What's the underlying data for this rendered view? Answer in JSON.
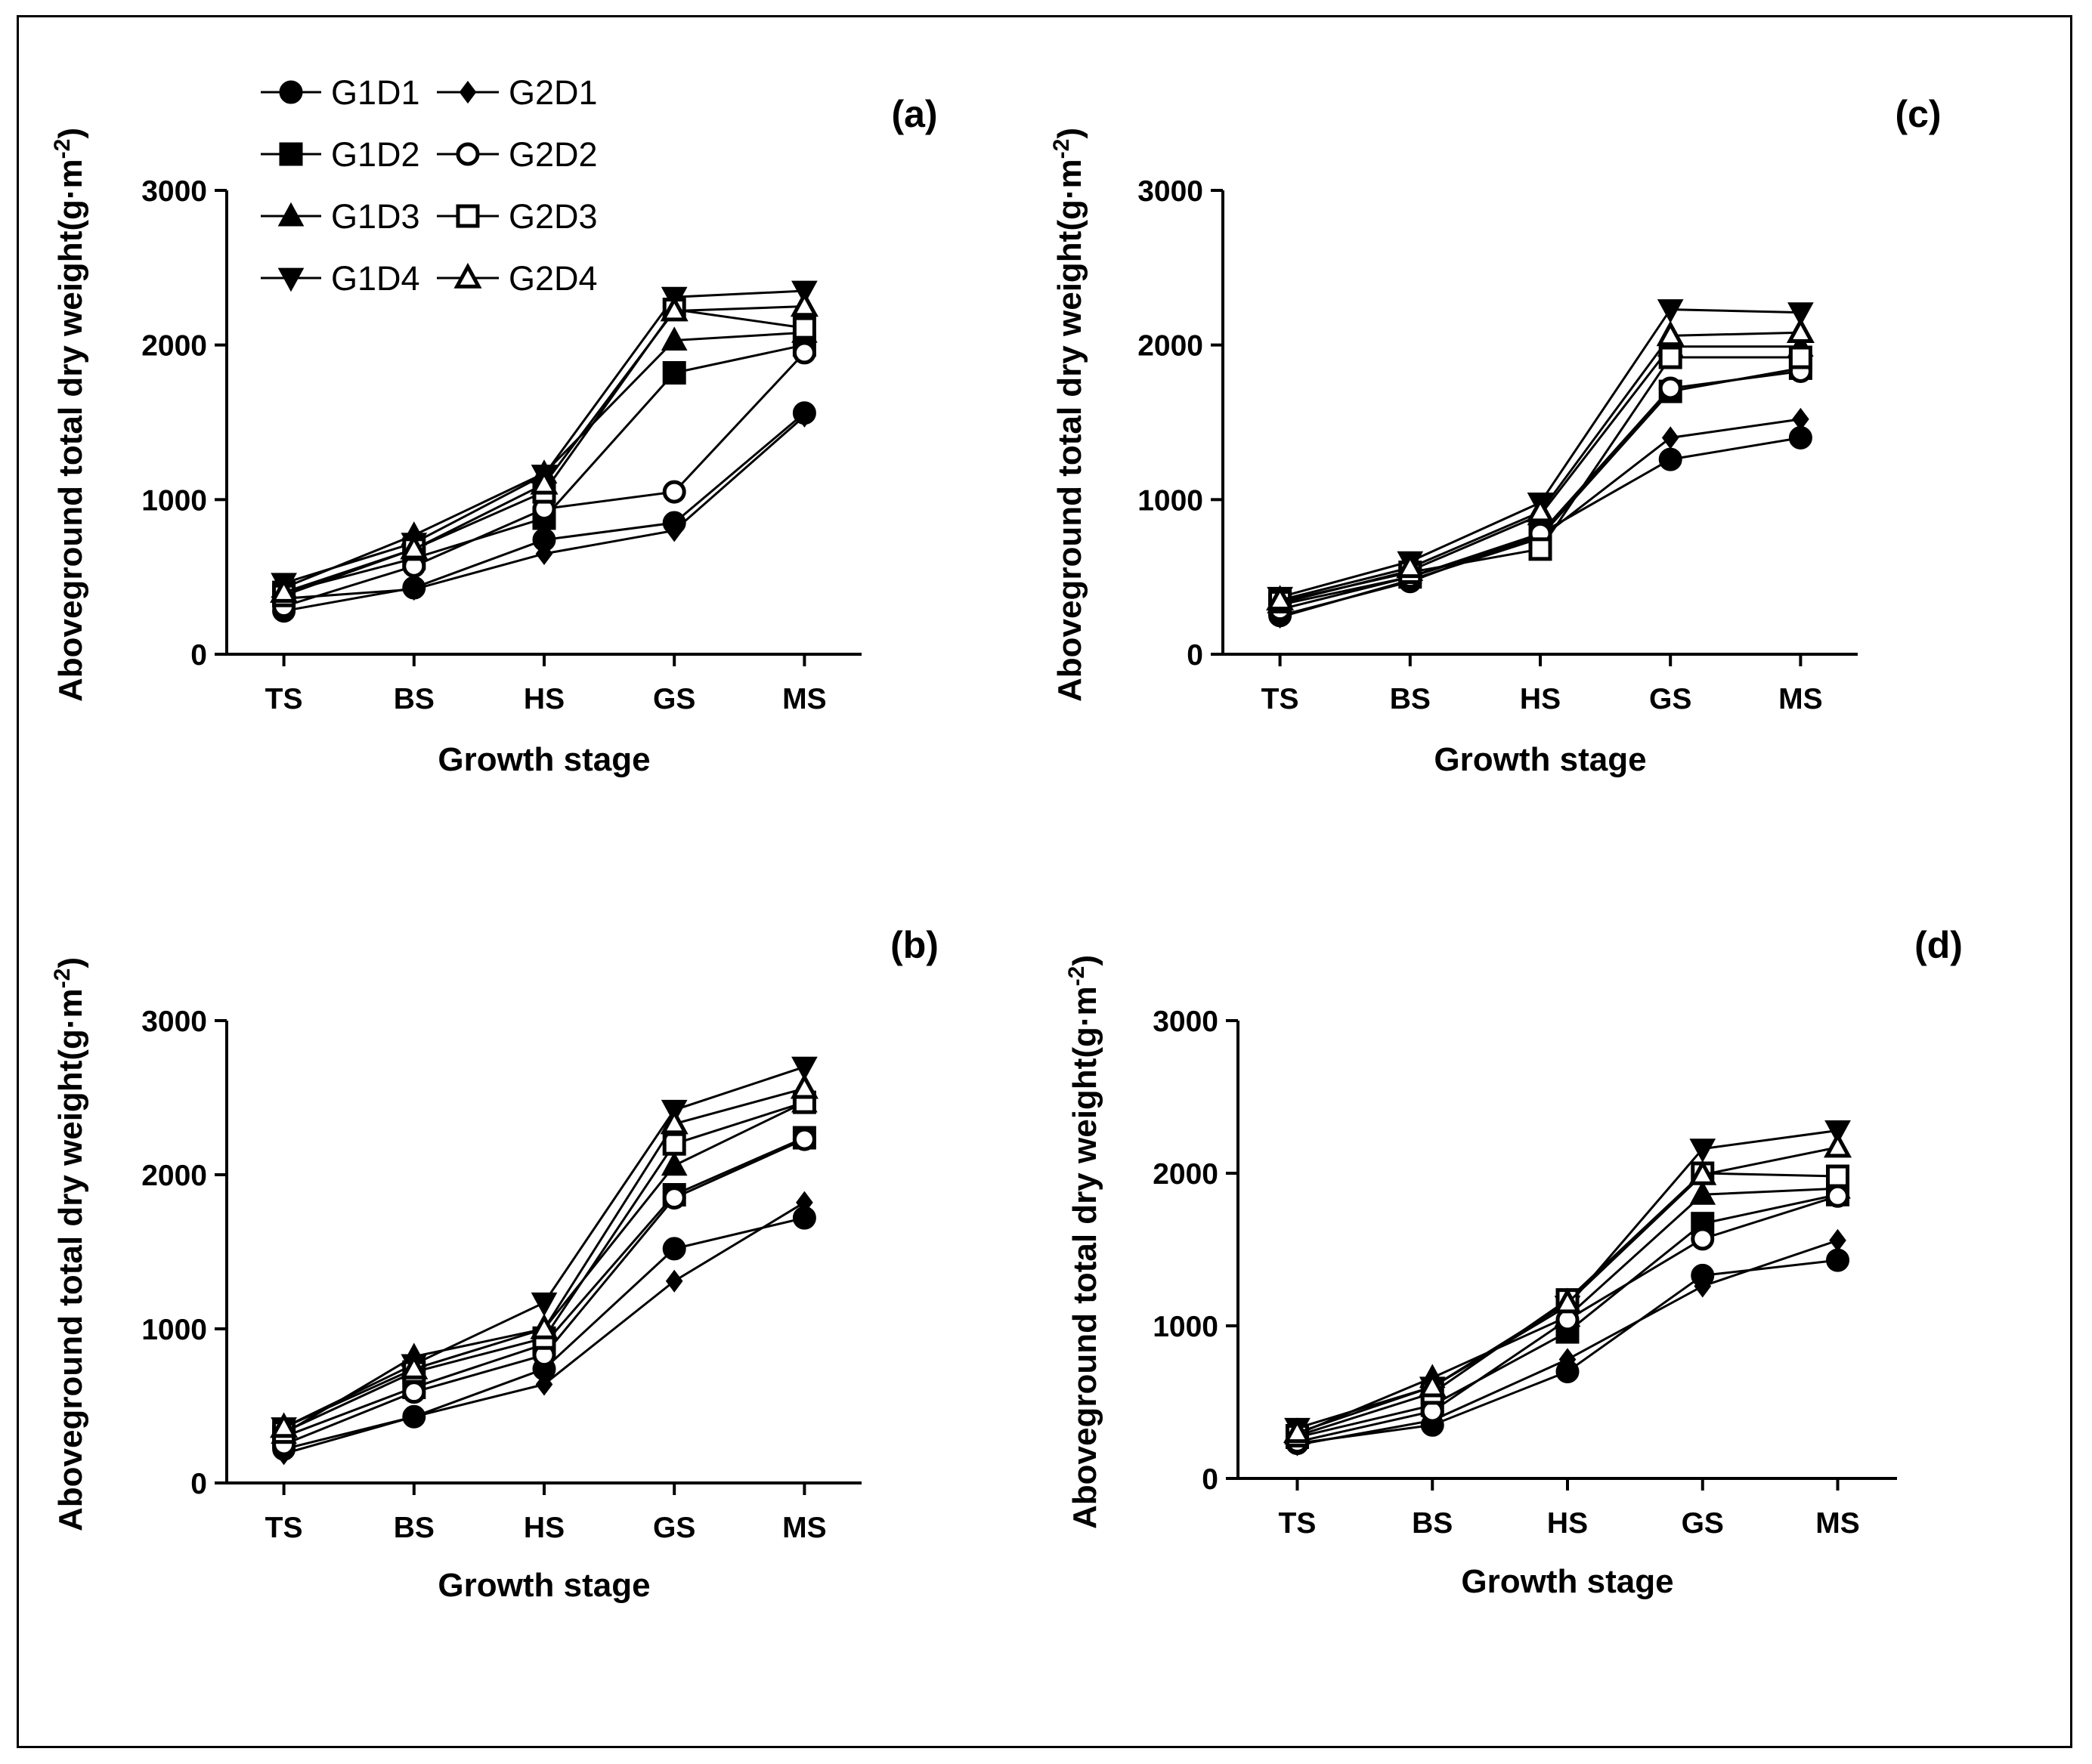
{
  "chart_data": [
    {
      "type": "line",
      "panel_label": "(a)",
      "categories": [
        "TS",
        "BS",
        "HS",
        "GS",
        "MS"
      ],
      "xlabel": "Growth stage",
      "ylabel": "Aboveground total dry weight(g·m",
      "ylabel_sup": "-2",
      "ylabel_close": ")",
      "ylim": [
        0,
        3000
      ],
      "yticks": [
        "0",
        "1000",
        "2000",
        "3000"
      ],
      "show_legend": true,
      "series": [
        {
          "name": "G1D1",
          "marker": "circle-filled",
          "values": [
            280,
            430,
            740,
            850,
            1560
          ]
        },
        {
          "name": "G1D2",
          "marker": "square-filled",
          "values": [
            400,
            620,
            880,
            1820,
            2000
          ]
        },
        {
          "name": "G1D3",
          "marker": "triangle-up-filled",
          "values": [
            430,
            770,
            1170,
            2030,
            2080
          ]
        },
        {
          "name": "G1D4",
          "marker": "triangle-down-filled",
          "values": [
            460,
            720,
            1160,
            2310,
            2350
          ]
        },
        {
          "name": "G2D1",
          "marker": "diamond-filled",
          "values": [
            360,
            420,
            650,
            800,
            1540
          ]
        },
        {
          "name": "G2D2",
          "marker": "circle-open",
          "values": [
            310,
            570,
            940,
            1050,
            1950
          ]
        },
        {
          "name": "G2D3",
          "marker": "square-open",
          "values": [
            380,
            680,
            1050,
            2230,
            2110
          ]
        },
        {
          "name": "G2D4",
          "marker": "triangle-up-open",
          "values": [
            400,
            680,
            1100,
            2220,
            2250
          ]
        }
      ]
    },
    {
      "type": "line",
      "panel_label": "(b)",
      "categories": [
        "TS",
        "BS",
        "HS",
        "GS",
        "MS"
      ],
      "xlabel": "Growth stage",
      "ylabel": "Aboveground total dry weight(g·m",
      "ylabel_sup": "-2",
      "ylabel_close": ")",
      "ylim": [
        0,
        3000
      ],
      "yticks": [
        "0",
        "1000",
        "2000",
        "3000"
      ],
      "show_legend": false,
      "series": [
        {
          "name": "G1D1",
          "marker": "circle-filled",
          "values": [
            220,
            430,
            740,
            1520,
            1720
          ]
        },
        {
          "name": "G1D2",
          "marker": "square-filled",
          "values": [
            300,
            620,
            900,
            1870,
            2240
          ]
        },
        {
          "name": "G1D3",
          "marker": "triangle-up-filled",
          "values": [
            320,
            820,
            1000,
            2060,
            2470
          ]
        },
        {
          "name": "G1D4",
          "marker": "triangle-down-filled",
          "values": [
            360,
            770,
            1170,
            2420,
            2700
          ]
        },
        {
          "name": "G2D1",
          "marker": "diamond-filled",
          "values": [
            190,
            430,
            640,
            1310,
            1820
          ]
        },
        {
          "name": "G2D2",
          "marker": "circle-open",
          "values": [
            250,
            590,
            830,
            1850,
            2230
          ]
        },
        {
          "name": "G2D3",
          "marker": "square-open",
          "values": [
            330,
            720,
            940,
            2200,
            2470
          ]
        },
        {
          "name": "G2D4",
          "marker": "triangle-up-open",
          "values": [
            360,
            740,
            1000,
            2330,
            2560
          ]
        }
      ]
    },
    {
      "type": "line",
      "panel_label": "(c)",
      "categories": [
        "TS",
        "BS",
        "HS",
        "GS",
        "MS"
      ],
      "xlabel": "Growth stage",
      "ylabel": "Aboveground total dry weight(g·m",
      "ylabel_sup": "-2",
      "ylabel_close": ")",
      "ylim": [
        0,
        3000
      ],
      "yticks": [
        "0",
        "1000",
        "2000",
        "3000"
      ],
      "show_legend": false,
      "series": [
        {
          "name": "G1D1",
          "marker": "circle-filled",
          "values": [
            250,
            470,
            780,
            1260,
            1400
          ]
        },
        {
          "name": "G1D2",
          "marker": "square-filled",
          "values": [
            320,
            500,
            760,
            1700,
            1850
          ]
        },
        {
          "name": "G1D3",
          "marker": "triangle-up-filled",
          "values": [
            330,
            540,
            900,
            1990,
            1990
          ]
        },
        {
          "name": "G1D4",
          "marker": "triangle-down-filled",
          "values": [
            370,
            600,
            980,
            2230,
            2210
          ]
        },
        {
          "name": "G2D1",
          "marker": "diamond-filled",
          "values": [
            240,
            480,
            750,
            1400,
            1520
          ]
        },
        {
          "name": "G2D2",
          "marker": "circle-open",
          "values": [
            290,
            500,
            780,
            1720,
            1830
          ]
        },
        {
          "name": "G2D3",
          "marker": "square-open",
          "values": [
            340,
            530,
            680,
            1920,
            1920
          ]
        },
        {
          "name": "G2D4",
          "marker": "triangle-up-open",
          "values": [
            350,
            560,
            920,
            2060,
            2080
          ]
        }
      ]
    },
    {
      "type": "line",
      "panel_label": "(d)",
      "categories": [
        "TS",
        "BS",
        "HS",
        "GS",
        "MS"
      ],
      "xlabel": "Growth stage",
      "ylabel": "Aboveground total dry weight(g·m",
      "ylabel_sup": "-2",
      "ylabel_close": ")",
      "ylim": [
        0,
        3000
      ],
      "yticks": [
        "0",
        "1000",
        "2000",
        "3000"
      ],
      "show_legend": false,
      "series": [
        {
          "name": "G1D1",
          "marker": "circle-filled",
          "values": [
            230,
            350,
            700,
            1330,
            1430
          ]
        },
        {
          "name": "G1D2",
          "marker": "square-filled",
          "values": [
            270,
            480,
            960,
            1670,
            1860
          ]
        },
        {
          "name": "G1D3",
          "marker": "triangle-up-filled",
          "values": [
            290,
            660,
            1060,
            1860,
            1900
          ]
        },
        {
          "name": "G1D4",
          "marker": "triangle-down-filled",
          "values": [
            330,
            600,
            1130,
            2160,
            2280
          ]
        },
        {
          "name": "G2D1",
          "marker": "diamond-filled",
          "values": [
            220,
            380,
            780,
            1260,
            1560
          ]
        },
        {
          "name": "G2D2",
          "marker": "circle-open",
          "values": [
            240,
            440,
            1040,
            1570,
            1850
          ]
        },
        {
          "name": "G2D3",
          "marker": "square-open",
          "values": [
            280,
            560,
            1170,
            2000,
            1980
          ]
        },
        {
          "name": "G2D4",
          "marker": "triangle-up-open",
          "values": [
            300,
            600,
            1150,
            1990,
            2170
          ]
        }
      ]
    }
  ]
}
